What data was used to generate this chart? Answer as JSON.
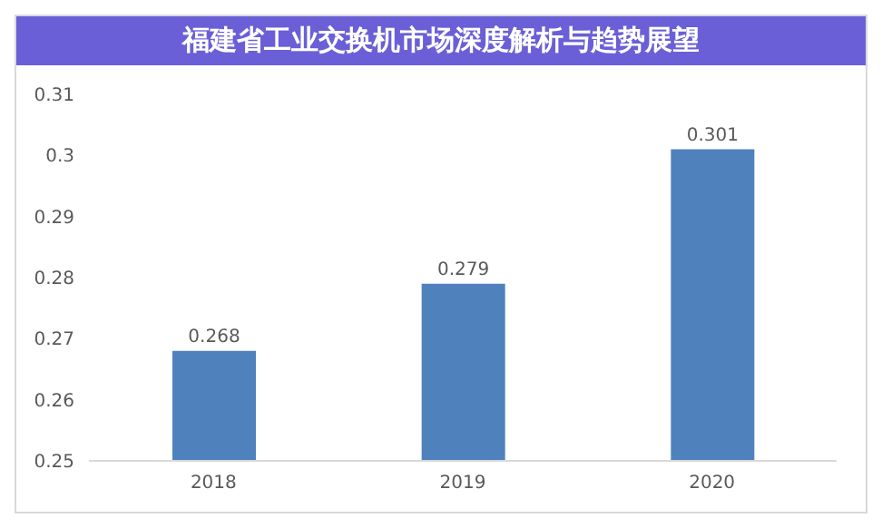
{
  "chart_data": {
    "type": "bar",
    "title": "福建省工业交换机市场深度解析与趋势展望",
    "categories": [
      "2018",
      "2019",
      "2020"
    ],
    "values": [
      0.268,
      0.279,
      0.301
    ],
    "color": "#4f81bd",
    "ylim": [
      0.25,
      0.31
    ],
    "yticks": [
      0.25,
      0.26,
      0.27,
      0.28,
      0.29,
      0.3,
      0.31
    ],
    "data_labels": true
  }
}
